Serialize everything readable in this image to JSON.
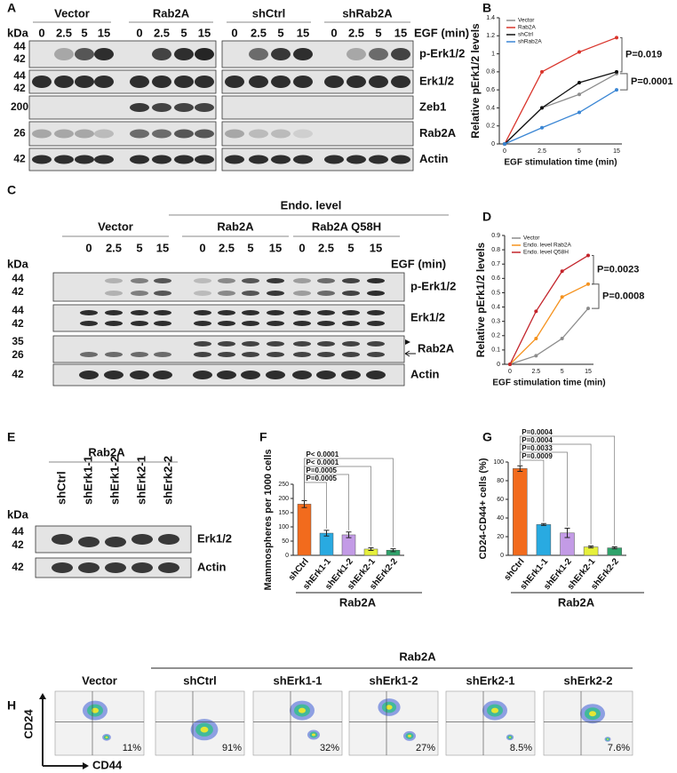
{
  "panel_labels": [
    "A",
    "B",
    "C",
    "D",
    "E",
    "F",
    "G",
    "H"
  ],
  "blot_a": {
    "groups": [
      "Vector",
      "Rab2A",
      "shCtrl",
      "shRab2A"
    ],
    "lanes": [
      "0",
      "2.5",
      "5",
      "15"
    ],
    "treatment": "EGF (min)",
    "kda_header": "kDa",
    "rows": [
      {
        "kda": [
          "44",
          "42"
        ],
        "label": "p-Erk1/2"
      },
      {
        "kda": [
          "44",
          "42"
        ],
        "label": "Erk1/2"
      },
      {
        "kda": [
          "200"
        ],
        "label": "Zeb1"
      },
      {
        "kda": [
          "26"
        ],
        "label": "Rab2A"
      },
      {
        "kda": [
          "42"
        ],
        "label": "Actin"
      }
    ]
  },
  "blot_c": {
    "header": "Endo. level",
    "groups": [
      "Vector",
      "Rab2A",
      "Rab2A Q58H"
    ],
    "lanes": [
      "0",
      "2.5",
      "5",
      "15"
    ],
    "treatment": "EGF (min)",
    "kda_header": "kDa",
    "rows": [
      {
        "kda": [
          "44",
          "42"
        ],
        "label": "p-Erk1/2"
      },
      {
        "kda": [
          "44",
          "42"
        ],
        "label": "Erk1/2"
      },
      {
        "kda": [
          "35",
          "26"
        ],
        "label": "Rab2A"
      },
      {
        "kda": [
          "42"
        ],
        "label": "Actin"
      }
    ]
  },
  "blot_e": {
    "group": "Rab2A",
    "lanes": [
      "shCtrl",
      "shErk1-1",
      "shErk1-2",
      "shErk2-1",
      "shErk2-2"
    ],
    "kda_header": "kDa",
    "rows": [
      {
        "kda": [
          "44",
          "42"
        ],
        "label": "Erk1/2"
      },
      {
        "kda": [
          "42"
        ],
        "label": "Actin"
      }
    ]
  },
  "flow_h": {
    "group": "Rab2A",
    "y_label": "CD24",
    "x_label": "CD44",
    "samples": [
      {
        "name": "Vector",
        "percent": "11%"
      },
      {
        "name": "shCtrl",
        "percent": "91%"
      },
      {
        "name": "shErk1-1",
        "percent": "32%"
      },
      {
        "name": "shErk1-2",
        "percent": "27%"
      },
      {
        "name": "shErk2-1",
        "percent": "8.5%"
      },
      {
        "name": "shErk2-2",
        "percent": "7.6%"
      }
    ]
  },
  "chart_data": [
    {
      "type": "line",
      "xlabel": "EGF stimulation time (min)",
      "ylabel": "Relative pErk1/2 levels",
      "categories": [
        "0",
        "2.5",
        "5",
        "15"
      ],
      "ylim": [
        0,
        1.4
      ],
      "yticks": [
        0,
        0.2,
        0.4,
        0.6,
        0.8,
        1,
        1.2,
        1.4
      ],
      "series": [
        {
          "name": "Vector",
          "color": "#8c8c8c",
          "values": [
            0,
            0.4,
            0.55,
            0.78
          ]
        },
        {
          "name": "Rab2A",
          "color": "#d9342b",
          "values": [
            0,
            0.8,
            1.02,
            1.18
          ]
        },
        {
          "name": "shCtrl",
          "color": "#111111",
          "values": [
            0,
            0.4,
            0.68,
            0.8
          ]
        },
        {
          "name": "shRab2A",
          "color": "#3a86d4",
          "values": [
            0,
            0.18,
            0.35,
            0.6
          ]
        }
      ],
      "annotations": [
        "P=0.019",
        "P=0.0001"
      ]
    },
    {
      "type": "line",
      "xlabel": "EGF stimulation time (min)",
      "ylabel": "Relative pErk1/2 levels",
      "categories": [
        "0",
        "2.5",
        "5",
        "15"
      ],
      "ylim": [
        0,
        0.9
      ],
      "yticks": [
        0,
        0.1,
        0.2,
        0.3,
        0.4,
        0.5,
        0.6,
        0.7,
        0.8,
        0.9
      ],
      "series": [
        {
          "name": "Vector",
          "color": "#8c8c8c",
          "values": [
            0,
            0.06,
            0.18,
            0.39
          ]
        },
        {
          "name": "Endo. level Rab2A",
          "color": "#f5921e",
          "values": [
            0,
            0.18,
            0.47,
            0.56
          ]
        },
        {
          "name": "Endo. level Q58H",
          "color": "#c3242b",
          "values": [
            0,
            0.37,
            0.65,
            0.76
          ]
        }
      ],
      "annotations": [
        "P=0.0023",
        "P=0.0008"
      ]
    },
    {
      "type": "bar",
      "ylabel": "Mammospheres per 1000 cells",
      "group_label": "Rab2A",
      "categories": [
        "shCtrl",
        "shErk1-1",
        "shErk1-2",
        "shErk2-1",
        "shErk2-2"
      ],
      "values": [
        180,
        78,
        72,
        22,
        18
      ],
      "errors": [
        12,
        10,
        10,
        5,
        5
      ],
      "colors": [
        "#f26b1d",
        "#29aae1",
        "#c39be6",
        "#e6f03c",
        "#2fa36b"
      ],
      "ylim": [
        0,
        250
      ],
      "yticks": [
        0,
        50,
        100,
        150,
        200,
        250
      ],
      "annotations": [
        "P=0.0005",
        "P=0.0005",
        "P< 0.0001",
        "P< 0.0001"
      ]
    },
    {
      "type": "bar",
      "ylabel": "CD24-CD44+ cells (%)",
      "group_label": "Rab2A",
      "categories": [
        "shCtrl",
        "shErk1-1",
        "shErk1-2",
        "shErk2-1",
        "shErk2-2"
      ],
      "values": [
        93,
        33,
        24,
        9,
        8
      ],
      "errors": [
        3,
        1,
        5,
        1,
        1
      ],
      "colors": [
        "#f26b1d",
        "#29aae1",
        "#c39be6",
        "#e6f03c",
        "#2fa36b"
      ],
      "ylim": [
        0,
        100
      ],
      "yticks": [
        0,
        20,
        40,
        60,
        80,
        100
      ],
      "annotations": [
        "P=0.0009",
        "P=0.0033",
        "P=0.0004",
        "P=0.0004"
      ]
    }
  ]
}
